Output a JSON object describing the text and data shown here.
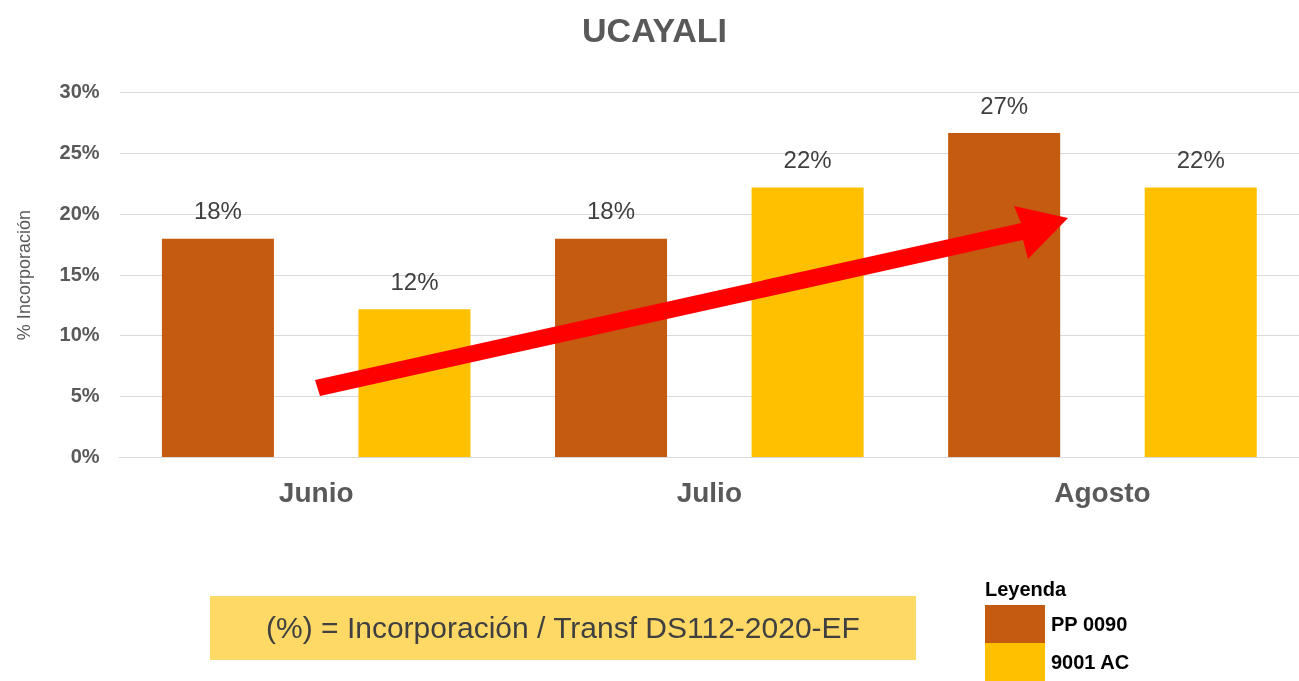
{
  "chart_data": {
    "type": "bar",
    "title": "UCAYALI",
    "ylabel": "% Incorporación",
    "legend_title": "Leyenda",
    "categories": [
      "Junio",
      "Julio",
      "Agosto"
    ],
    "series": [
      {
        "name": "PP 0090",
        "color": "#c55a11",
        "values": [
          18,
          18,
          26.7
        ],
        "value_labels": [
          "18%",
          "18%",
          "27%"
        ]
      },
      {
        "name": "9001 AC",
        "color": "#ffc000",
        "values": [
          12.2,
          22.2,
          22.2
        ],
        "value_labels": [
          "12%",
          "22%",
          "22%"
        ]
      }
    ],
    "ylim": [
      0,
      30
    ],
    "yticks": [
      {
        "value": 0,
        "label": "0%"
      },
      {
        "value": 5,
        "label": "5%"
      },
      {
        "value": 10,
        "label": "10%"
      },
      {
        "value": 15,
        "label": "15%"
      },
      {
        "value": 20,
        "label": "20%"
      },
      {
        "value": 25,
        "label": "25%"
      },
      {
        "value": 30,
        "label": "30%"
      }
    ],
    "grid": "y",
    "legend": "bottom right",
    "annotations": [
      "(%) = Incorporación / Transf DS112-2020-EF"
    ]
  }
}
